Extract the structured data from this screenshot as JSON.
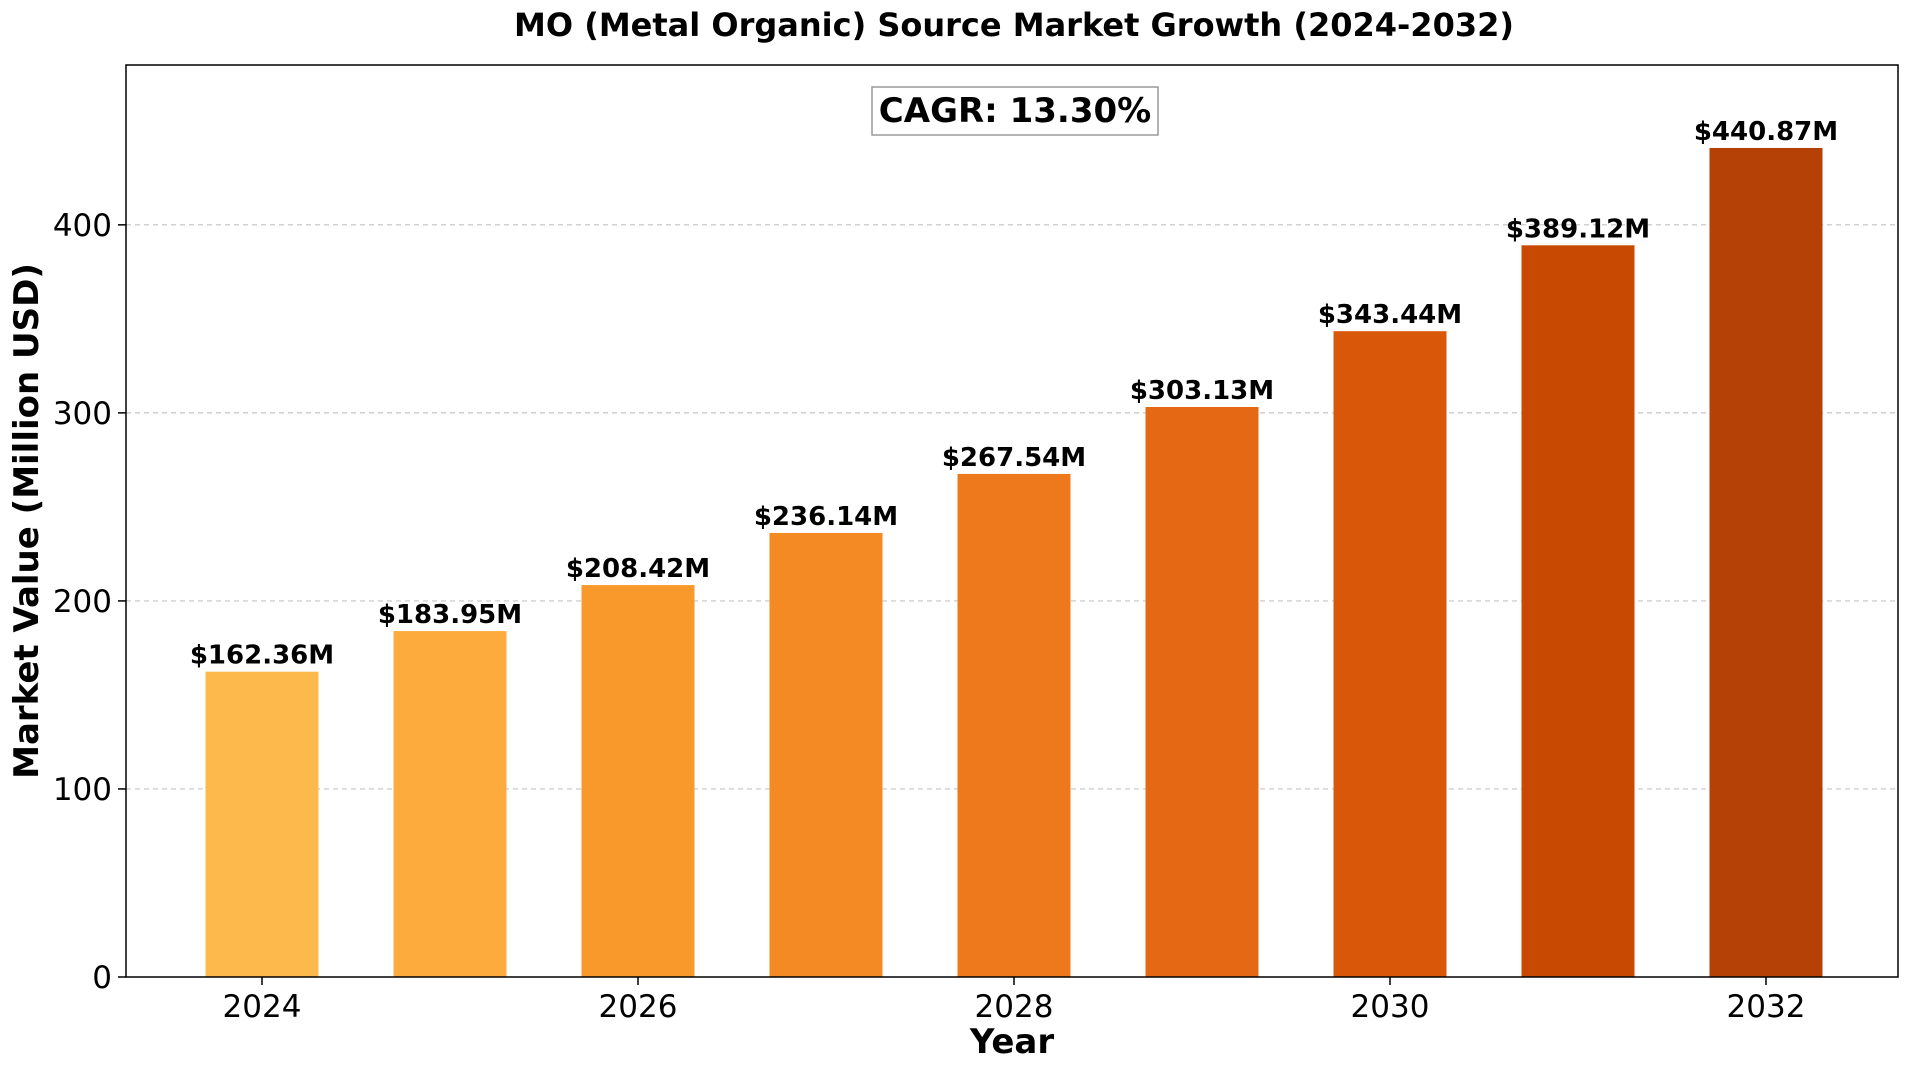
{
  "chart_data": {
    "type": "bar",
    "title": "MO (Metal Organic) Source Market Growth (2024-2032)",
    "xlabel": "Year",
    "ylabel": "Market Value (Million USD)",
    "categories": [
      "2024",
      "2025",
      "2026",
      "2027",
      "2028",
      "2029",
      "2030",
      "2031",
      "2032"
    ],
    "values": [
      162.36,
      183.95,
      208.42,
      236.14,
      267.54,
      303.13,
      343.44,
      389.12,
      440.87
    ],
    "data_labels": [
      "$162.36M",
      "$183.95M",
      "$208.42M",
      "$236.14M",
      "$267.54M",
      "$303.13M",
      "$343.44M",
      "$389.12M",
      "$440.87M"
    ],
    "bar_colors": [
      "#FDB94B",
      "#FCAB3C",
      "#F9982B",
      "#F48A23",
      "#EE791C",
      "#E56915",
      "#D95709",
      "#C84A02",
      "#B54106"
    ],
    "x_ticks": [
      "2024",
      "2026",
      "2028",
      "2030",
      "2032"
    ],
    "y_ticks": [
      "0",
      "100",
      "200",
      "300",
      "400"
    ],
    "y_tick_values": [
      0,
      100,
      200,
      300,
      400
    ],
    "ylim": [
      0,
      485
    ],
    "grid": "horizontal dashed",
    "annotation": "CAGR: 13.30%"
  }
}
